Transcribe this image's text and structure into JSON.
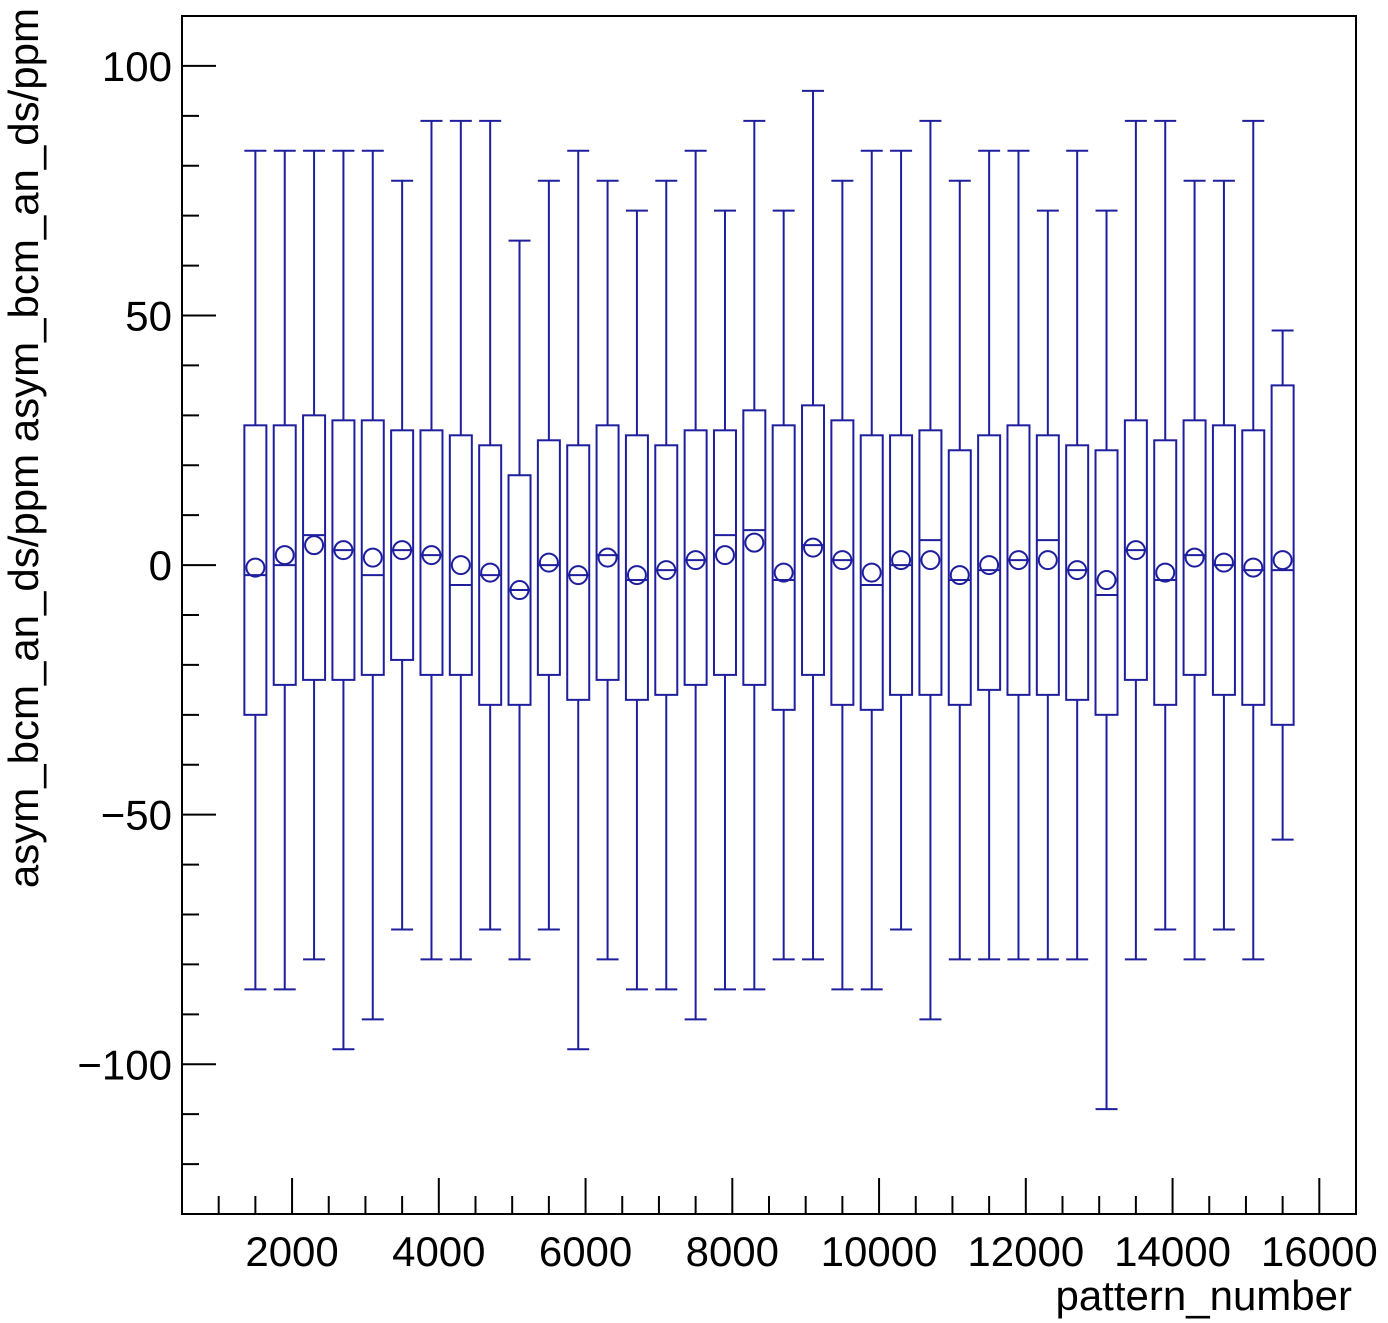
{
  "chart_data": {
    "type": "boxplot",
    "xlabel": "pattern_number",
    "ylabel": "asym_bcm_an_ds/ppm asym_bcm_an_ds/ppm",
    "xlim": [
      500,
      16500
    ],
    "ylim": [
      -130,
      110
    ],
    "x_major_ticks": [
      2000,
      4000,
      6000,
      8000,
      10000,
      12000,
      14000,
      16000
    ],
    "x_minor_step": 500,
    "y_major_ticks": [
      -100,
      -50,
      0,
      50,
      100
    ],
    "y_minor_step": 10,
    "grid": false,
    "legend": "none",
    "colors": {
      "series": "#1f1f9e",
      "axis": "#000000",
      "background": "#ffffff"
    },
    "boxes": [
      {
        "x": 1500,
        "min": -85,
        "q1": -30,
        "median": -2,
        "q3": 28,
        "max": 83,
        "mean": -0.5
      },
      {
        "x": 1900,
        "min": -85,
        "q1": -24,
        "median": 0,
        "q3": 28,
        "max": 83,
        "mean": 2
      },
      {
        "x": 2300,
        "min": -79,
        "q1": -23,
        "median": 6,
        "q3": 30,
        "max": 83,
        "mean": 4
      },
      {
        "x": 2700,
        "min": -97,
        "q1": -23,
        "median": 3,
        "q3": 29,
        "max": 83,
        "mean": 3
      },
      {
        "x": 3100,
        "min": -91,
        "q1": -22,
        "median": -2,
        "q3": 29,
        "max": 83,
        "mean": 1.5
      },
      {
        "x": 3500,
        "min": -73,
        "q1": -19,
        "median": 3,
        "q3": 27,
        "max": 77,
        "mean": 3
      },
      {
        "x": 3900,
        "min": -79,
        "q1": -22,
        "median": 2,
        "q3": 27,
        "max": 89,
        "mean": 2
      },
      {
        "x": 4300,
        "min": -79,
        "q1": -22,
        "median": -4,
        "q3": 26,
        "max": 89,
        "mean": 0
      },
      {
        "x": 4700,
        "min": -73,
        "q1": -28,
        "median": -2,
        "q3": 24,
        "max": 89,
        "mean": -1.5
      },
      {
        "x": 5100,
        "min": -79,
        "q1": -28,
        "median": -5,
        "q3": 18,
        "max": 65,
        "mean": -5
      },
      {
        "x": 5500,
        "min": -73,
        "q1": -22,
        "median": 0,
        "q3": 25,
        "max": 77,
        "mean": 0.5
      },
      {
        "x": 5900,
        "min": -97,
        "q1": -27,
        "median": -2,
        "q3": 24,
        "max": 83,
        "mean": -2
      },
      {
        "x": 6300,
        "min": -79,
        "q1": -23,
        "median": 2,
        "q3": 28,
        "max": 77,
        "mean": 1.5
      },
      {
        "x": 6700,
        "min": -85,
        "q1": -27,
        "median": -3,
        "q3": 26,
        "max": 71,
        "mean": -2
      },
      {
        "x": 7100,
        "min": -85,
        "q1": -26,
        "median": -1,
        "q3": 24,
        "max": 77,
        "mean": -1
      },
      {
        "x": 7500,
        "min": -91,
        "q1": -24,
        "median": 1,
        "q3": 27,
        "max": 83,
        "mean": 1
      },
      {
        "x": 7900,
        "min": -85,
        "q1": -22,
        "median": 6,
        "q3": 27,
        "max": 71,
        "mean": 2
      },
      {
        "x": 8300,
        "min": -85,
        "q1": -24,
        "median": 7,
        "q3": 31,
        "max": 89,
        "mean": 4.5
      },
      {
        "x": 8700,
        "min": -79,
        "q1": -29,
        "median": -3,
        "q3": 28,
        "max": 71,
        "mean": -1.5
      },
      {
        "x": 9100,
        "min": -79,
        "q1": -22,
        "median": 4,
        "q3": 32,
        "max": 95,
        "mean": 3.5
      },
      {
        "x": 9500,
        "min": -85,
        "q1": -28,
        "median": 1,
        "q3": 29,
        "max": 77,
        "mean": 1
      },
      {
        "x": 9900,
        "min": -85,
        "q1": -29,
        "median": -4,
        "q3": 26,
        "max": 83,
        "mean": -1.5
      },
      {
        "x": 10300,
        "min": -73,
        "q1": -26,
        "median": 0,
        "q3": 26,
        "max": 83,
        "mean": 1
      },
      {
        "x": 10700,
        "min": -91,
        "q1": -26,
        "median": 5,
        "q3": 27,
        "max": 89,
        "mean": 1
      },
      {
        "x": 11100,
        "min": -79,
        "q1": -28,
        "median": -3,
        "q3": 23,
        "max": 77,
        "mean": -2
      },
      {
        "x": 11500,
        "min": -79,
        "q1": -25,
        "median": -1,
        "q3": 26,
        "max": 83,
        "mean": 0
      },
      {
        "x": 11900,
        "min": -79,
        "q1": -26,
        "median": 1,
        "q3": 28,
        "max": 83,
        "mean": 1
      },
      {
        "x": 12300,
        "min": -79,
        "q1": -26,
        "median": 5,
        "q3": 26,
        "max": 71,
        "mean": 1
      },
      {
        "x": 12700,
        "min": -79,
        "q1": -27,
        "median": -1,
        "q3": 24,
        "max": 83,
        "mean": -1
      },
      {
        "x": 13100,
        "min": -109,
        "q1": -30,
        "median": -6,
        "q3": 23,
        "max": 71,
        "mean": -3
      },
      {
        "x": 13500,
        "min": -79,
        "q1": -23,
        "median": 3,
        "q3": 29,
        "max": 89,
        "mean": 3
      },
      {
        "x": 13900,
        "min": -73,
        "q1": -28,
        "median": -3,
        "q3": 25,
        "max": 89,
        "mean": -1.5
      },
      {
        "x": 14300,
        "min": -79,
        "q1": -22,
        "median": 2,
        "q3": 29,
        "max": 77,
        "mean": 1.5
      },
      {
        "x": 14700,
        "min": -73,
        "q1": -26,
        "median": 0,
        "q3": 28,
        "max": 77,
        "mean": 0.5
      },
      {
        "x": 15100,
        "min": -79,
        "q1": -28,
        "median": -1,
        "q3": 27,
        "max": 89,
        "mean": -0.5
      },
      {
        "x": 15500,
        "min": -55,
        "q1": -32,
        "median": -1,
        "q3": 36,
        "max": 47,
        "mean": 1
      }
    ]
  }
}
